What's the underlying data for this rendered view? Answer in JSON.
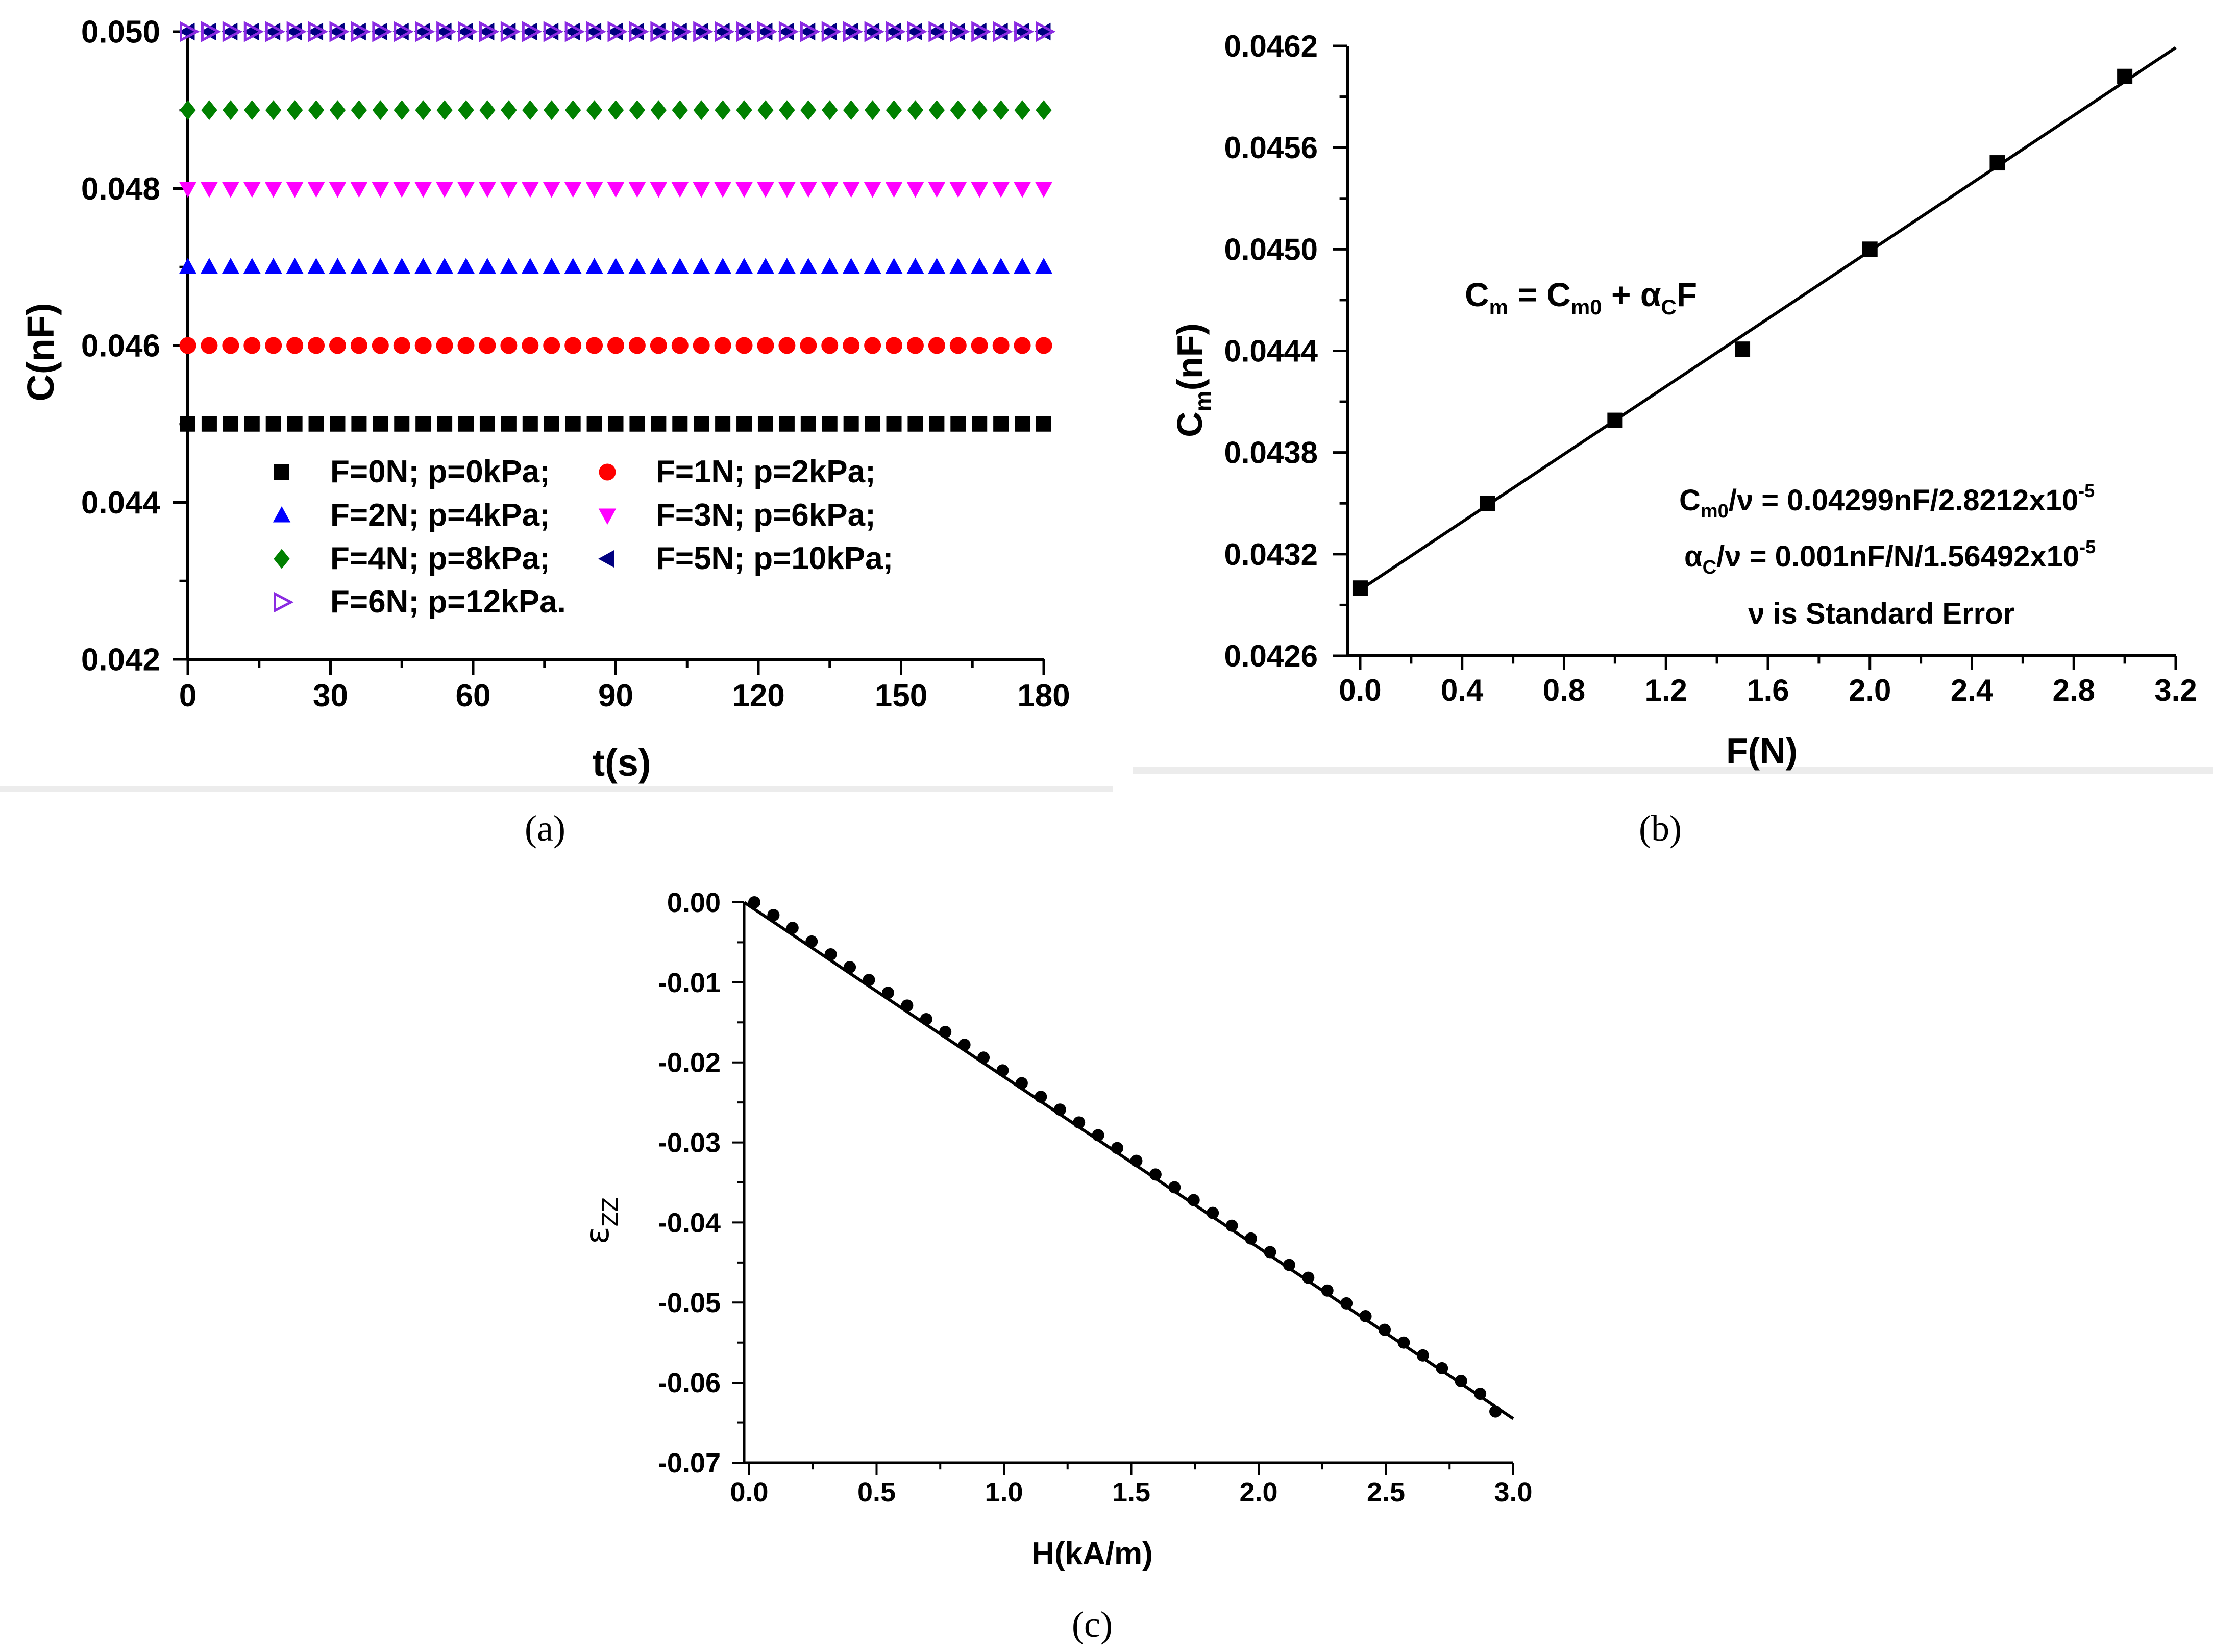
{
  "chart_data": [
    {
      "panel": "a",
      "type": "scatter",
      "caption": "(a)",
      "xlabel": "t(s)",
      "ylabel": "C(nF)",
      "xlim": [
        0,
        180
      ],
      "ylim": [
        0.042,
        0.05
      ],
      "xticks": [
        0,
        30,
        60,
        90,
        120,
        150,
        180
      ],
      "xtick_labels": [
        "0",
        "30",
        "60",
        "90",
        "120",
        "150",
        "180"
      ],
      "yticks": [
        0.042,
        0.044,
        0.046,
        0.048,
        0.05
      ],
      "ytick_labels": [
        "0.042",
        "0.044",
        "0.046",
        "0.048",
        "0.050"
      ],
      "x": [
        0,
        4.5,
        9,
        13.5,
        18,
        22.5,
        27,
        31.5,
        36,
        40.5,
        45,
        49.5,
        54,
        58.5,
        63,
        67.5,
        72,
        76.5,
        81,
        85.5,
        90,
        94.5,
        99,
        103.5,
        108,
        112.5,
        117,
        121.5,
        126,
        130.5,
        135,
        139.5,
        144,
        148.5,
        153,
        157.5,
        162,
        166.5,
        171,
        175.5,
        180
      ],
      "series": [
        {
          "name": "F=0N; p=0kPa;",
          "value": 0.045,
          "marker": "square",
          "color": "#000000"
        },
        {
          "name": "F=1N; p=2kPa;",
          "value": 0.046,
          "marker": "circle",
          "color": "#ff0000"
        },
        {
          "name": "F=2N; p=4kPa;",
          "value": 0.047,
          "marker": "triangle-up",
          "color": "#0000ff"
        },
        {
          "name": "F=3N; p=6kPa;",
          "value": 0.048,
          "marker": "triangle-down",
          "color": "#ff00ff"
        },
        {
          "name": "F=4N; p=8kPa;",
          "value": 0.049,
          "marker": "diamond",
          "color": "#008000"
        },
        {
          "name": "F=5N; p=10kPa;",
          "value": 0.05,
          "marker": "triangle-left",
          "color": "#000080"
        },
        {
          "name": "F=6N; p=12kPa.",
          "value": 0.05,
          "marker": "triangle-right-open",
          "color": "#8b2be2"
        }
      ]
    },
    {
      "panel": "b",
      "type": "scatter",
      "caption": "(b)",
      "xlabel": "F(N)",
      "ylabel": "C",
      "ylabel_sub": "m",
      "ylabel_tail": "(nF)",
      "xlim": [
        -0.05,
        3.2
      ],
      "ylim": [
        0.0426,
        0.0462
      ],
      "xticks": [
        0,
        0.4,
        0.8,
        1.2,
        1.6,
        2.0,
        2.4,
        2.8,
        3.2
      ],
      "xtick_labels": [
        "0.0",
        "0.4",
        "0.8",
        "1.2",
        "1.6",
        "2.0",
        "2.4",
        "2.8",
        "3.2"
      ],
      "yticks": [
        0.0426,
        0.0432,
        0.0438,
        0.0444,
        0.045,
        0.0456,
        0.0462
      ],
      "ytick_labels": [
        "0.0426",
        "0.0432",
        "0.0438",
        "0.0444",
        "0.0450",
        "0.0456",
        "0.0462"
      ],
      "points": {
        "x": [
          0,
          0.5,
          1.0,
          1.5,
          2.0,
          2.5,
          3.0
        ],
        "y": [
          0.043,
          0.0435,
          0.04399,
          0.04441,
          0.045,
          0.04551,
          0.04602
        ]
      },
      "fit": {
        "intercept": 0.04299,
        "slope": 0.001
      },
      "equation": {
        "a": "C",
        "a_sub": "m",
        "b": " = C",
        "b_sub": "m0",
        "c": " + α",
        "c_sub": "C",
        "d": "F"
      },
      "annotations": [
        {
          "a": "C",
          "a_sub": "m0",
          "b": "/ν = 0.04299nF/2.8212x10",
          "sup": "-5"
        },
        {
          "a": "α",
          "a_sub": "C",
          "b": "/ν = 0.001nF/N/1.56492x10",
          "sup": "-5"
        },
        {
          "a": "ν is Standard Error"
        }
      ]
    },
    {
      "panel": "c",
      "type": "scatter",
      "caption": "(c)",
      "xlabel": "H(kA/m)",
      "ylabel": "ε",
      "ylabel_sub": "ZZ",
      "xlim": [
        -0.02,
        3.0
      ],
      "ylim": [
        -0.07,
        0.0
      ],
      "xticks": [
        0,
        0.5,
        1.0,
        1.5,
        2.0,
        2.5,
        3.0
      ],
      "xtick_labels": [
        "0.0",
        "0.5",
        "1.0",
        "1.5",
        "2.0",
        "2.5",
        "3.0"
      ],
      "yticks": [
        0.0,
        -0.01,
        -0.02,
        -0.03,
        -0.04,
        -0.05,
        -0.06,
        -0.07
      ],
      "ytick_labels": [
        "0.00",
        "-0.01",
        "-0.02",
        "-0.03",
        "-0.04",
        "-0.05",
        "-0.06",
        "-0.07"
      ],
      "points": {
        "x": [
          0.02,
          0.095,
          0.17,
          0.245,
          0.32,
          0.395,
          0.47,
          0.545,
          0.62,
          0.695,
          0.77,
          0.845,
          0.92,
          0.995,
          1.07,
          1.145,
          1.22,
          1.295,
          1.37,
          1.445,
          1.52,
          1.595,
          1.67,
          1.745,
          1.82,
          1.895,
          1.97,
          2.045,
          2.12,
          2.195,
          2.27,
          2.345,
          2.42,
          2.495,
          2.57,
          2.645,
          2.72,
          2.795,
          2.87,
          2.93
        ],
        "y": [
          0.0,
          -0.0016,
          -0.0032,
          -0.0049,
          -0.0065,
          -0.0081,
          -0.0097,
          -0.0113,
          -0.0129,
          -0.0146,
          -0.0162,
          -0.0178,
          -0.0194,
          -0.021,
          -0.0226,
          -0.0243,
          -0.0259,
          -0.0275,
          -0.0291,
          -0.0307,
          -0.0323,
          -0.034,
          -0.0356,
          -0.0372,
          -0.0388,
          -0.0404,
          -0.042,
          -0.0437,
          -0.0453,
          -0.0469,
          -0.0485,
          -0.0501,
          -0.0517,
          -0.0534,
          -0.055,
          -0.0566,
          -0.0582,
          -0.0598,
          -0.0614,
          -0.0636
        ]
      },
      "fit": {
        "slope": -0.0215,
        "intercept": 0.0
      }
    }
  ]
}
